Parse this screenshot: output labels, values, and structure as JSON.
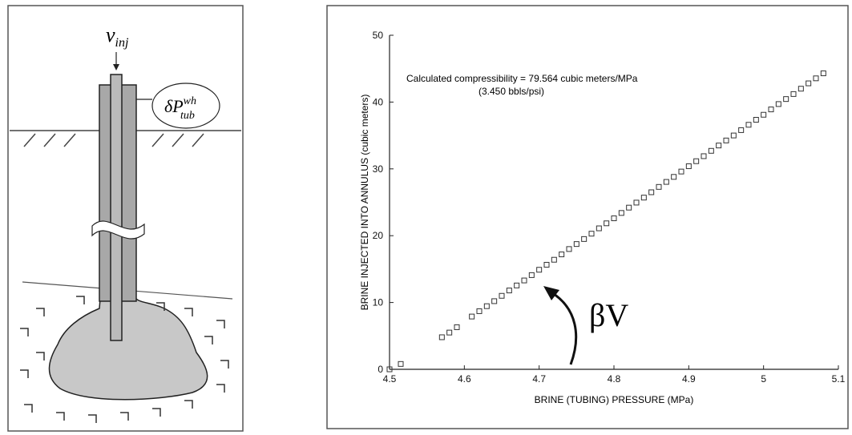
{
  "diagram": {
    "v_label": "v",
    "v_sub": "inj",
    "p_label": "δP",
    "p_sup": "wh",
    "p_sub": "tub"
  },
  "chart_data": {
    "type": "scatter",
    "x_label": "BRINE (TUBING) PRESSURE (MPa)",
    "y_label": "BRINE INJECTED INTO ANNULUS (cubic meters)",
    "annotations": [
      "Calculated compressibility = 79.564 cubic meters/MPa",
      "(3.450 bbls/psi)",
      "βV"
    ],
    "color": "#333333",
    "x": [
      4.5,
      4.515,
      4.57,
      4.58,
      4.59,
      4.61,
      4.62,
      4.63,
      4.64,
      4.65,
      4.66,
      4.67,
      4.68,
      4.69,
      4.7,
      4.71,
      4.72,
      4.73,
      4.74,
      4.75,
      4.76,
      4.77,
      4.78,
      4.79,
      4.8,
      4.81,
      4.82,
      4.83,
      4.84,
      4.85,
      4.86,
      4.87,
      4.88,
      4.89,
      4.9,
      4.91,
      4.92,
      4.93,
      4.94,
      4.95,
      4.96,
      4.97,
      4.98,
      4.99,
      5.0,
      5.01,
      5.02,
      5.03,
      5.04,
      5.05,
      5.06,
      5.07,
      5.08
    ],
    "values": [
      0,
      0.8,
      4.8,
      5.5,
      6.3,
      7.9,
      8.7,
      9.45,
      10.2,
      11.0,
      11.8,
      12.55,
      13.3,
      14.1,
      14.9,
      15.65,
      16.4,
      17.2,
      18.0,
      18.75,
      19.5,
      20.3,
      21.1,
      21.85,
      22.6,
      23.4,
      24.2,
      24.95,
      25.7,
      26.5,
      27.3,
      28.05,
      28.8,
      29.6,
      30.4,
      31.15,
      31.9,
      32.7,
      33.5,
      34.25,
      35.0,
      35.8,
      36.6,
      37.35,
      38.1,
      38.9,
      39.7,
      40.45,
      41.2,
      42.0,
      42.8,
      43.55,
      44.3
    ],
    "xlim": [
      4.5,
      5.1
    ],
    "xticks": [
      4.5,
      4.6,
      4.7,
      4.8,
      4.9,
      5,
      5.1
    ],
    "ylim": [
      0,
      50
    ],
    "yticks": [
      0,
      10,
      20,
      30,
      40,
      50
    ]
  }
}
